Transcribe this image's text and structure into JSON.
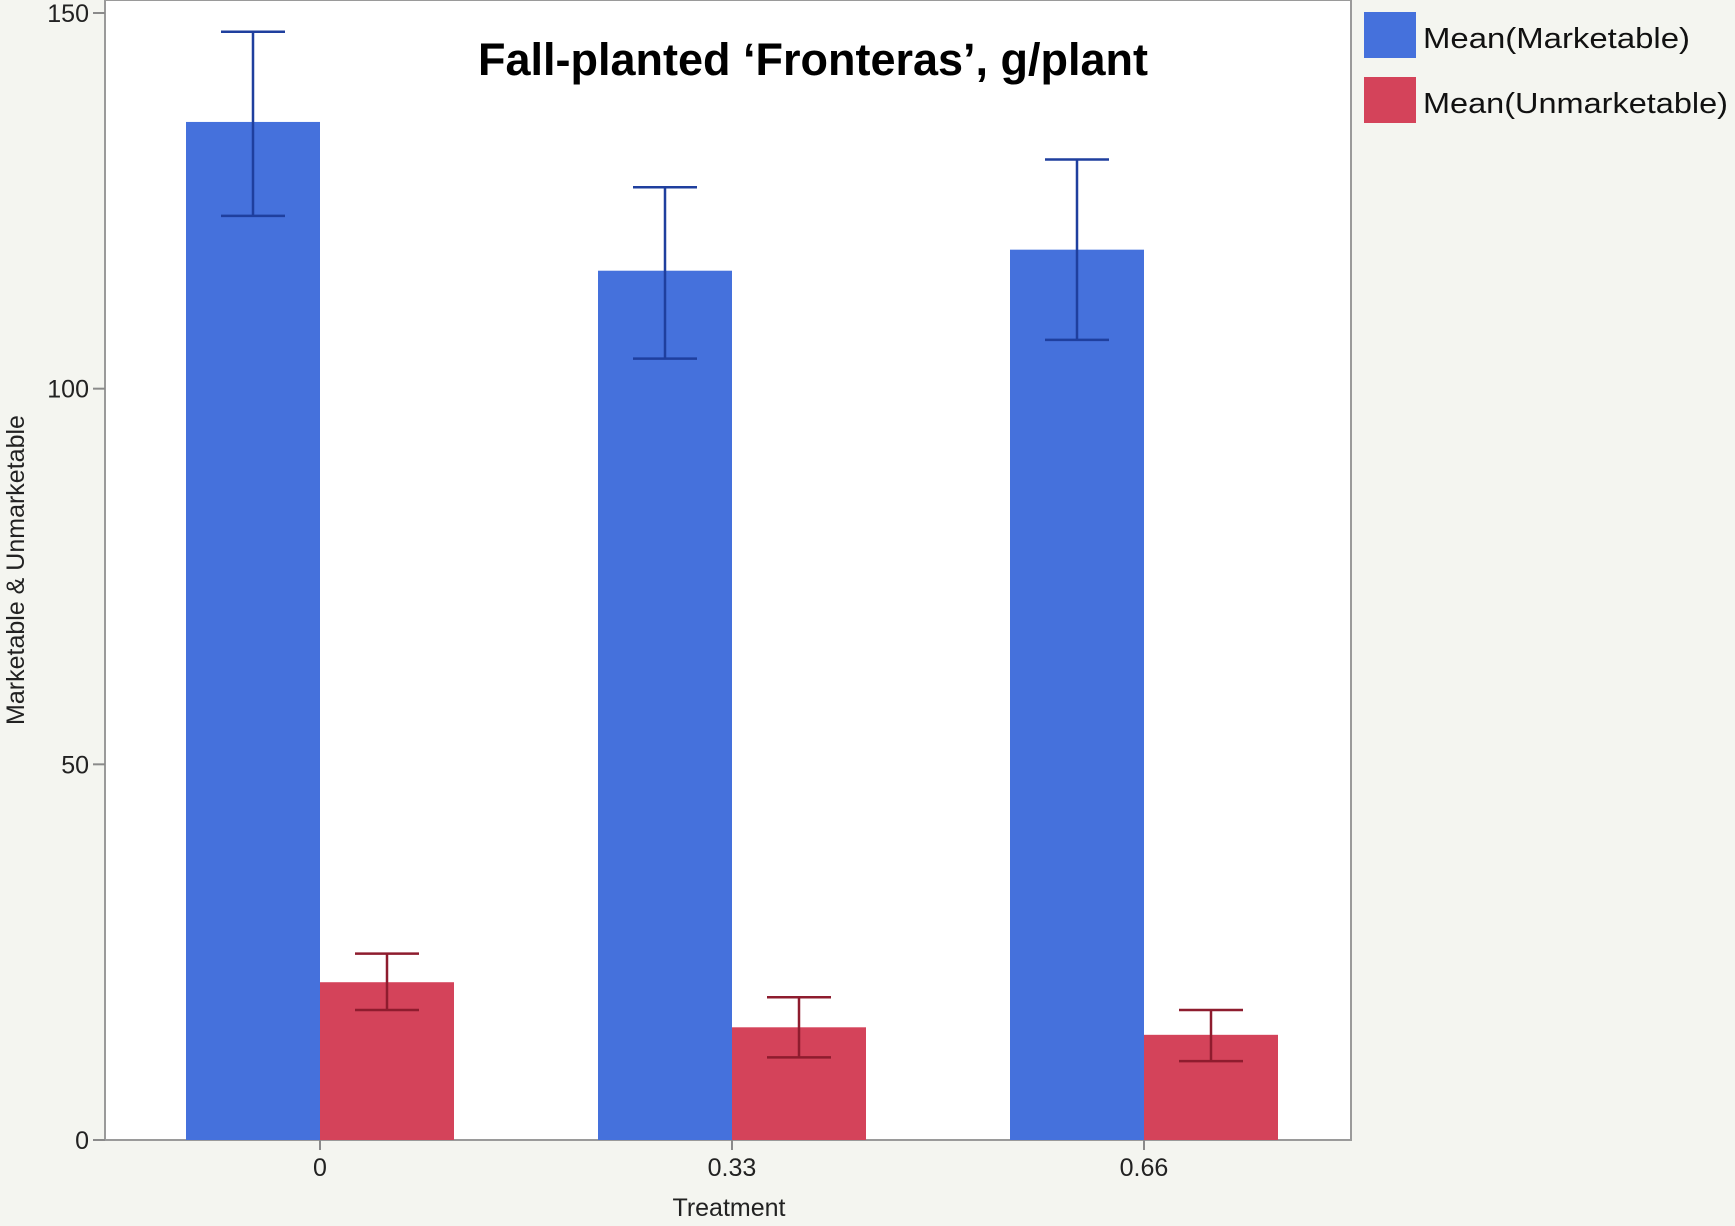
{
  "chart_data": {
    "type": "bar",
    "title": "Fall-planted ‘Fronteras’, g/plant",
    "xlabel": "Treatment",
    "ylabel": "Marketable & Unmarketable",
    "categories": [
      "0",
      "0.33",
      "0.66"
    ],
    "series": [
      {
        "name": "Mean(Marketable)",
        "color": "#4571dc",
        "error_color": "#1f3f9e",
        "values": [
          135.5,
          115.7,
          118.5
        ],
        "error_low": [
          123.0,
          104.0,
          106.5
        ],
        "error_high": [
          147.5,
          126.8,
          130.5
        ]
      },
      {
        "name": "Mean(Unmarketable)",
        "color": "#d4435a",
        "error_color": "#8e1c2e",
        "values": [
          21.0,
          15.0,
          14.0
        ],
        "error_low": [
          17.3,
          11.0,
          10.5
        ],
        "error_high": [
          24.8,
          19.0,
          17.3
        ]
      }
    ],
    "ylim": [
      0,
      150
    ],
    "yticks": [
      0,
      50,
      100,
      150
    ],
    "grid": false,
    "legend_position": "right"
  }
}
